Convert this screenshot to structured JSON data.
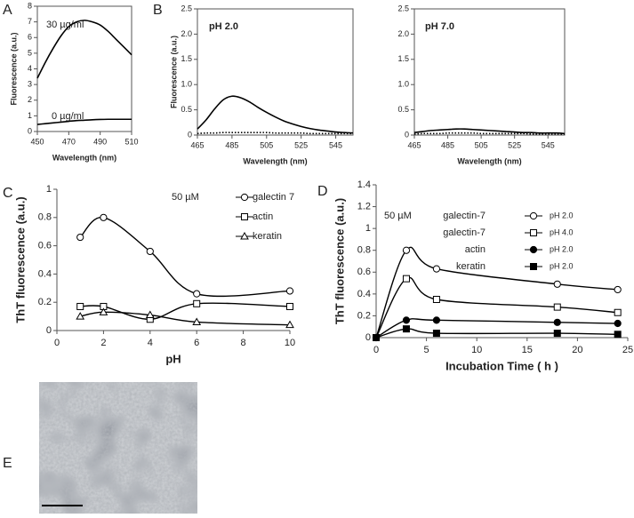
{
  "chart_data": [
    {
      "type": "line",
      "panel": "A",
      "xlabel": "Wavelength (nm)",
      "ylabel": "Fluorescence (a.u.)",
      "frame": "box",
      "x": [
        450,
        455,
        460,
        465,
        470,
        475,
        480,
        485,
        490,
        495,
        500,
        505,
        510
      ],
      "xlim": [
        450,
        510
      ],
      "xticks": [
        450,
        470,
        490,
        510
      ],
      "ylim": [
        0,
        8
      ],
      "yticks": [
        0,
        1,
        2,
        3,
        4,
        5,
        6,
        7,
        8
      ],
      "annotations": [
        "30 µg/ml",
        "0 µg/ml"
      ],
      "series": [
        {
          "color": "#000",
          "dash": "solid",
          "values": [
            3.4,
            4.4,
            5.3,
            6.1,
            6.7,
            7.0,
            7.1,
            7.0,
            6.8,
            6.4,
            5.9,
            5.4,
            4.9
          ]
        },
        {
          "color": "#000",
          "dash": "solid",
          "values": [
            0.45,
            0.5,
            0.55,
            0.6,
            0.65,
            0.7,
            0.72,
            0.75,
            0.77,
            0.78,
            0.78,
            0.78,
            0.78
          ]
        }
      ]
    },
    {
      "type": "line",
      "panel": "B",
      "title": "pH 2.0",
      "xlabel": "Wavelength (nm)",
      "ylabel": "Fluorescence (a.u.)",
      "frame": "box",
      "x": [
        465,
        470,
        475,
        480,
        485,
        490,
        495,
        500,
        505,
        510,
        515,
        520,
        525,
        530,
        535,
        540,
        545,
        550,
        555
      ],
      "xlim": [
        465,
        555
      ],
      "xticks": [
        465,
        485,
        505,
        525,
        545
      ],
      "ylim": [
        0,
        2.5
      ],
      "yticks": [
        0,
        0.5,
        {
          "value": 1,
          "label": "1.0"
        },
        1.5,
        {
          "value": 2,
          "label": "2.0"
        },
        2.5
      ],
      "series": [
        {
          "color": "#000",
          "dash": "solid",
          "values": [
            0.12,
            0.3,
            0.52,
            0.7,
            0.77,
            0.74,
            0.66,
            0.55,
            0.45,
            0.36,
            0.28,
            0.22,
            0.17,
            0.13,
            0.1,
            0.08,
            0.06,
            0.05,
            0.04
          ]
        },
        {
          "color": "#000",
          "dash": "dotted",
          "values": [
            0.03,
            0.04,
            0.04,
            0.05,
            0.05,
            0.05,
            0.05,
            0.05,
            0.05,
            0.04,
            0.04,
            0.04,
            0.04,
            0.03,
            0.03,
            0.03,
            0.03,
            0.03,
            0.03
          ]
        }
      ]
    },
    {
      "type": "line",
      "title": "pH 7.0",
      "xlabel": "Wavelength (nm)",
      "frame": "box",
      "x": [
        465,
        470,
        475,
        480,
        485,
        490,
        495,
        500,
        505,
        510,
        515,
        520,
        525,
        530,
        535,
        540,
        545,
        550,
        555
      ],
      "xlim": [
        465,
        555
      ],
      "xticks": [
        465,
        485,
        505,
        525,
        545
      ],
      "ylim": [
        0,
        2.5
      ],
      "yticks": [
        0,
        0.5,
        {
          "value": 1,
          "label": "1.0"
        },
        1.5,
        {
          "value": 2,
          "label": "2.0"
        },
        2.5
      ],
      "series": [
        {
          "color": "#000",
          "dash": "solid",
          "values": [
            0.05,
            0.07,
            0.09,
            0.1,
            0.11,
            0.12,
            0.12,
            0.11,
            0.1,
            0.09,
            0.08,
            0.07,
            0.06,
            0.05,
            0.05,
            0.04,
            0.04,
            0.04,
            0.03
          ]
        },
        {
          "color": "#000",
          "dash": "dotted",
          "values": [
            0.02,
            0.03,
            0.03,
            0.03,
            0.04,
            0.04,
            0.04,
            0.04,
            0.03,
            0.03,
            0.03,
            0.03,
            0.03,
            0.03,
            0.02,
            0.02,
            0.02,
            0.02,
            0.02
          ]
        }
      ]
    },
    {
      "type": "line",
      "panel": "C",
      "xlabel": "pH",
      "ylabel": "ThT fluorescence (a.u.)",
      "frame": "axes",
      "x": [
        1,
        2,
        4,
        6,
        10
      ],
      "xlim": [
        0,
        10
      ],
      "xticks": [
        0,
        2,
        4,
        6,
        8,
        10
      ],
      "ylim": [
        0,
        1
      ],
      "yticks": [
        0,
        0.2,
        0.4,
        0.6,
        0.8,
        1
      ],
      "annotations": [
        "50 µM"
      ],
      "series": [
        {
          "name": "galectin 7",
          "color": "#000",
          "marker": "circle",
          "filled": false,
          "values": [
            0.66,
            0.8,
            0.56,
            0.26,
            0.28
          ]
        },
        {
          "name": "actin",
          "color": "#000",
          "marker": "square",
          "filled": false,
          "values": [
            0.17,
            0.17,
            0.08,
            0.19,
            0.17
          ]
        },
        {
          "name": "keratin",
          "color": "#000",
          "marker": "triangle",
          "filled": false,
          "values": [
            0.1,
            0.13,
            0.11,
            0.06,
            0.04
          ]
        }
      ]
    },
    {
      "type": "line",
      "panel": "D",
      "xlabel": "Incubation Time ( h )",
      "ylabel": "ThT fluorescence (a.u.)",
      "frame": "axes",
      "x": [
        0,
        3,
        6,
        18,
        24
      ],
      "xlim": [
        0,
        25
      ],
      "xticks": [
        0,
        5,
        10,
        15,
        20,
        25
      ],
      "ylim": [
        0,
        1.4
      ],
      "yticks": [
        0,
        0.2,
        0.4,
        0.6,
        0.8,
        1,
        1.2,
        1.4
      ],
      "annotations": [
        "50 µM"
      ],
      "series": [
        {
          "name": "galectin-7",
          "condition": "pH 2.0",
          "color": "#000",
          "marker": "circle",
          "filled": false,
          "values": [
            0,
            0.8,
            0.63,
            0.49,
            0.44
          ]
        },
        {
          "name": "galectin-7",
          "condition": "pH 4.0",
          "color": "#000",
          "marker": "square",
          "filled": false,
          "values": [
            0,
            0.54,
            0.35,
            0.28,
            0.23
          ]
        },
        {
          "name": "actin",
          "condition": "pH 2.0",
          "color": "#000",
          "marker": "circle",
          "filled": true,
          "values": [
            0,
            0.16,
            0.16,
            0.14,
            0.13
          ]
        },
        {
          "name": "keratin",
          "condition": "pH 2.0",
          "color": "#000",
          "marker": "square",
          "filled": true,
          "values": [
            0,
            0.08,
            0.04,
            0.04,
            0.03
          ]
        }
      ]
    },
    {
      "type": "image",
      "panel": "E"
    }
  ]
}
